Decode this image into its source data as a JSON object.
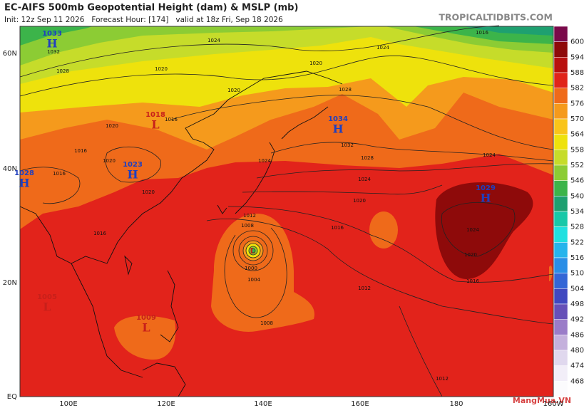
{
  "header": {
    "title": "EC-AIFS 500mb Geopotential Height (dam) & MSLP (mb)",
    "subtitle": "Init: 12z Sep 11 2026   Forecast Hour: [174]   valid at 18z Fri, Sep 18 2026",
    "site": "TROPICALTIDBITS.COM"
  },
  "colorbar": {
    "levels": [
      600,
      594,
      588,
      582,
      576,
      570,
      564,
      558,
      552,
      546,
      540,
      534,
      528,
      522,
      516,
      510,
      504,
      498,
      492,
      486,
      480,
      474,
      468
    ],
    "colors": [
      "#7a0a4a",
      "#8e0a0a",
      "#b8100e",
      "#e0241a",
      "#ef6a1a",
      "#f59a1c",
      "#f9c41a",
      "#eee20c",
      "#c6dc2a",
      "#8ccc34",
      "#3cb44a",
      "#1ea070",
      "#17c8a8",
      "#20e0e0",
      "#26b4ec",
      "#2a8ee6",
      "#3466d6",
      "#4048c0",
      "#6650b8",
      "#9a7cc8",
      "#c4b0dc",
      "#e0d8ee",
      "#f2eef8",
      "#fbfbfd"
    ]
  },
  "axes": {
    "lon_labels": [
      "100E",
      "120E",
      "140E",
      "160E",
      "180",
      "160W"
    ],
    "lat_labels": [
      "60N",
      "40N",
      "20N",
      "EQ"
    ]
  },
  "centers": [
    {
      "symbol": "H",
      "value": 1033
    },
    {
      "symbol": "H",
      "value": 1034
    },
    {
      "symbol": "H",
      "value": 1028
    },
    {
      "symbol": "H",
      "value": 1023
    },
    {
      "symbol": "H",
      "value": 1029
    },
    {
      "symbol": "L",
      "value": 1018
    },
    {
      "symbol": "L",
      "value": 1009
    },
    {
      "symbol": "L",
      "value": 1005
    },
    {
      "symbol": "L"
    }
  ],
  "isobar_labels": [
    1032,
    1028,
    1024,
    1020,
    1020,
    1020,
    1028,
    1016,
    1024,
    1032,
    1028,
    1024,
    1024,
    1020,
    1016,
    1012,
    1008,
    1000,
    1004,
    1008,
    1012,
    1016,
    1020,
    1024,
    1012,
    1016,
    1020,
    1016,
    1020,
    1024,
    1020,
    1016,
    1016
  ],
  "watermark": "MangMua.VN"
}
